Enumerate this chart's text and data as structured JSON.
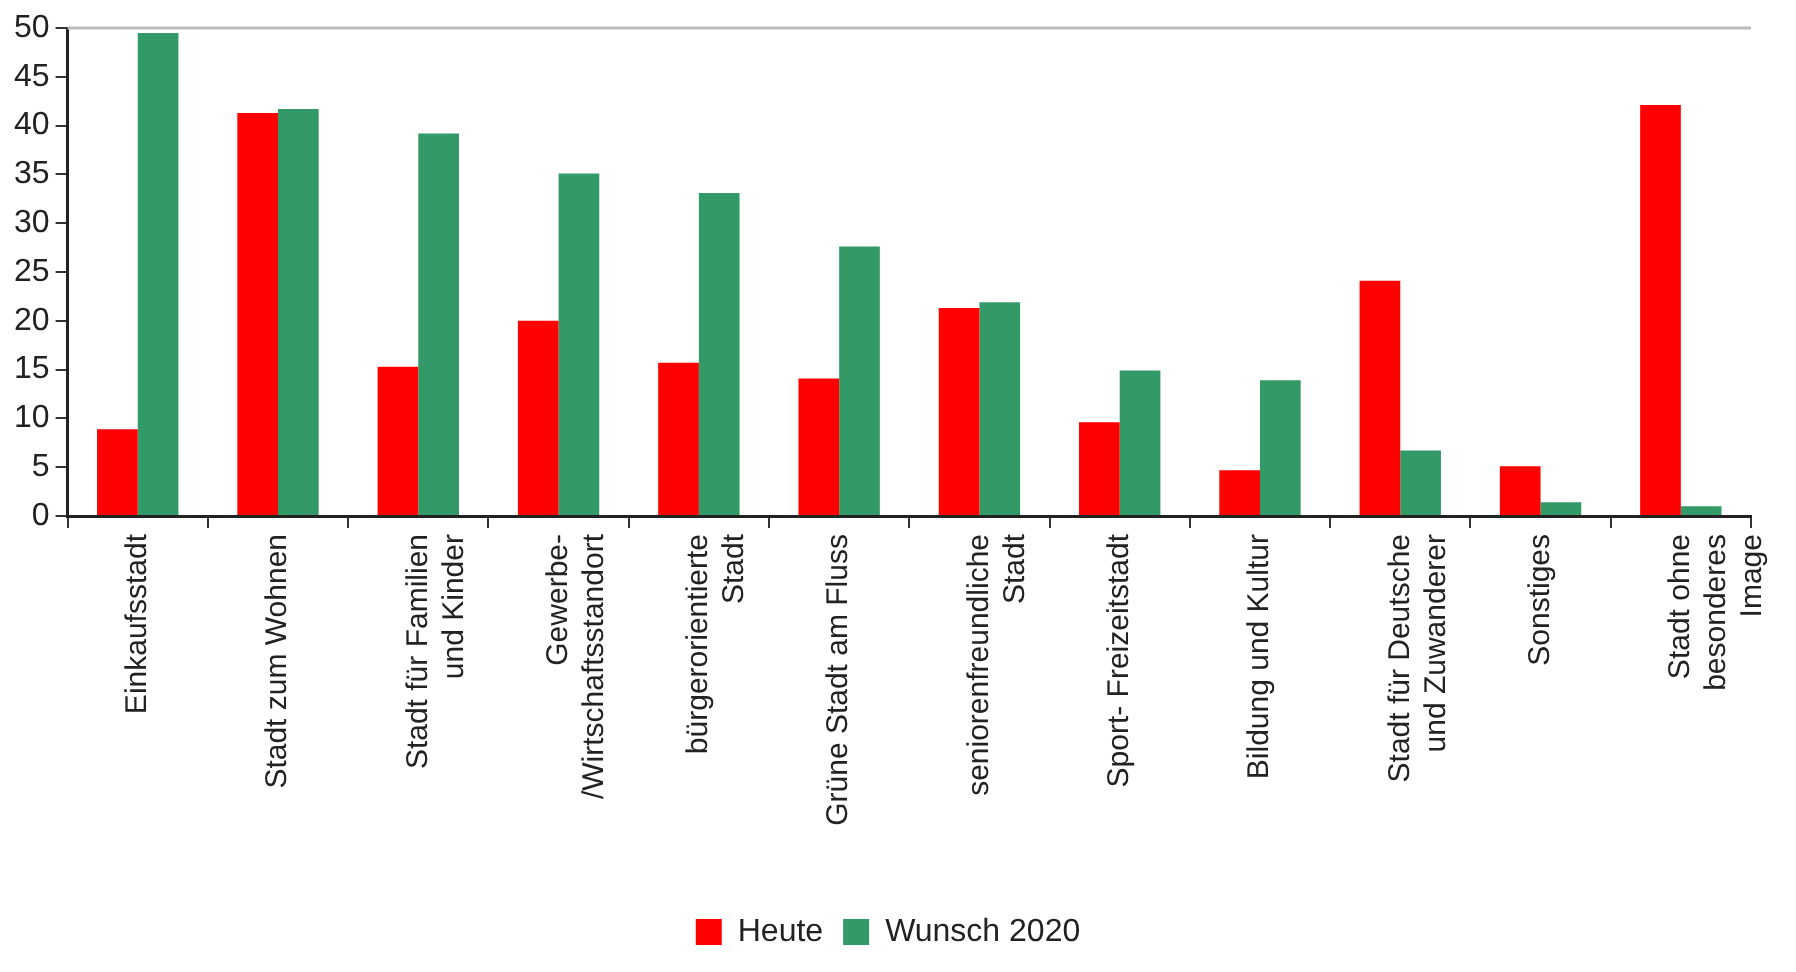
{
  "chart_data": {
    "type": "bar",
    "categories": [
      "Einkaufsstadt",
      "Stadt zum Wohnen",
      "Stadt für Familien\nund Kinder",
      "Gewerbe-\n/Wirtschaftsstandort",
      "bürgerorientierte\nStadt",
      "Grüne Stadt am Fluss",
      "seniorenfreundliche\nStadt",
      "Sport- Freizeitstadt",
      "Bildung und Kultur",
      "Stadt für Deutsche\nund Zuwanderer",
      "Sonstiges",
      "Stadt ohne\nbesonderes\nImage"
    ],
    "series": [
      {
        "name": "Heute",
        "color": "#ff0000",
        "values": [
          8.9,
          41.3,
          15.3,
          20.0,
          15.7,
          14.1,
          21.3,
          9.6,
          4.7,
          24.1,
          5.1,
          42.1
        ]
      },
      {
        "name": "Wunsch 2020",
        "color": "#339966",
        "values": [
          49.5,
          41.7,
          39.2,
          35.1,
          33.1,
          27.6,
          21.9,
          14.9,
          13.9,
          6.7,
          1.4,
          1.0
        ]
      }
    ],
    "ylim": [
      0,
      50
    ],
    "yticks": [
      0,
      5,
      10,
      15,
      20,
      25,
      30,
      35,
      40,
      45,
      50
    ],
    "grid": false,
    "legend": "bottom"
  }
}
